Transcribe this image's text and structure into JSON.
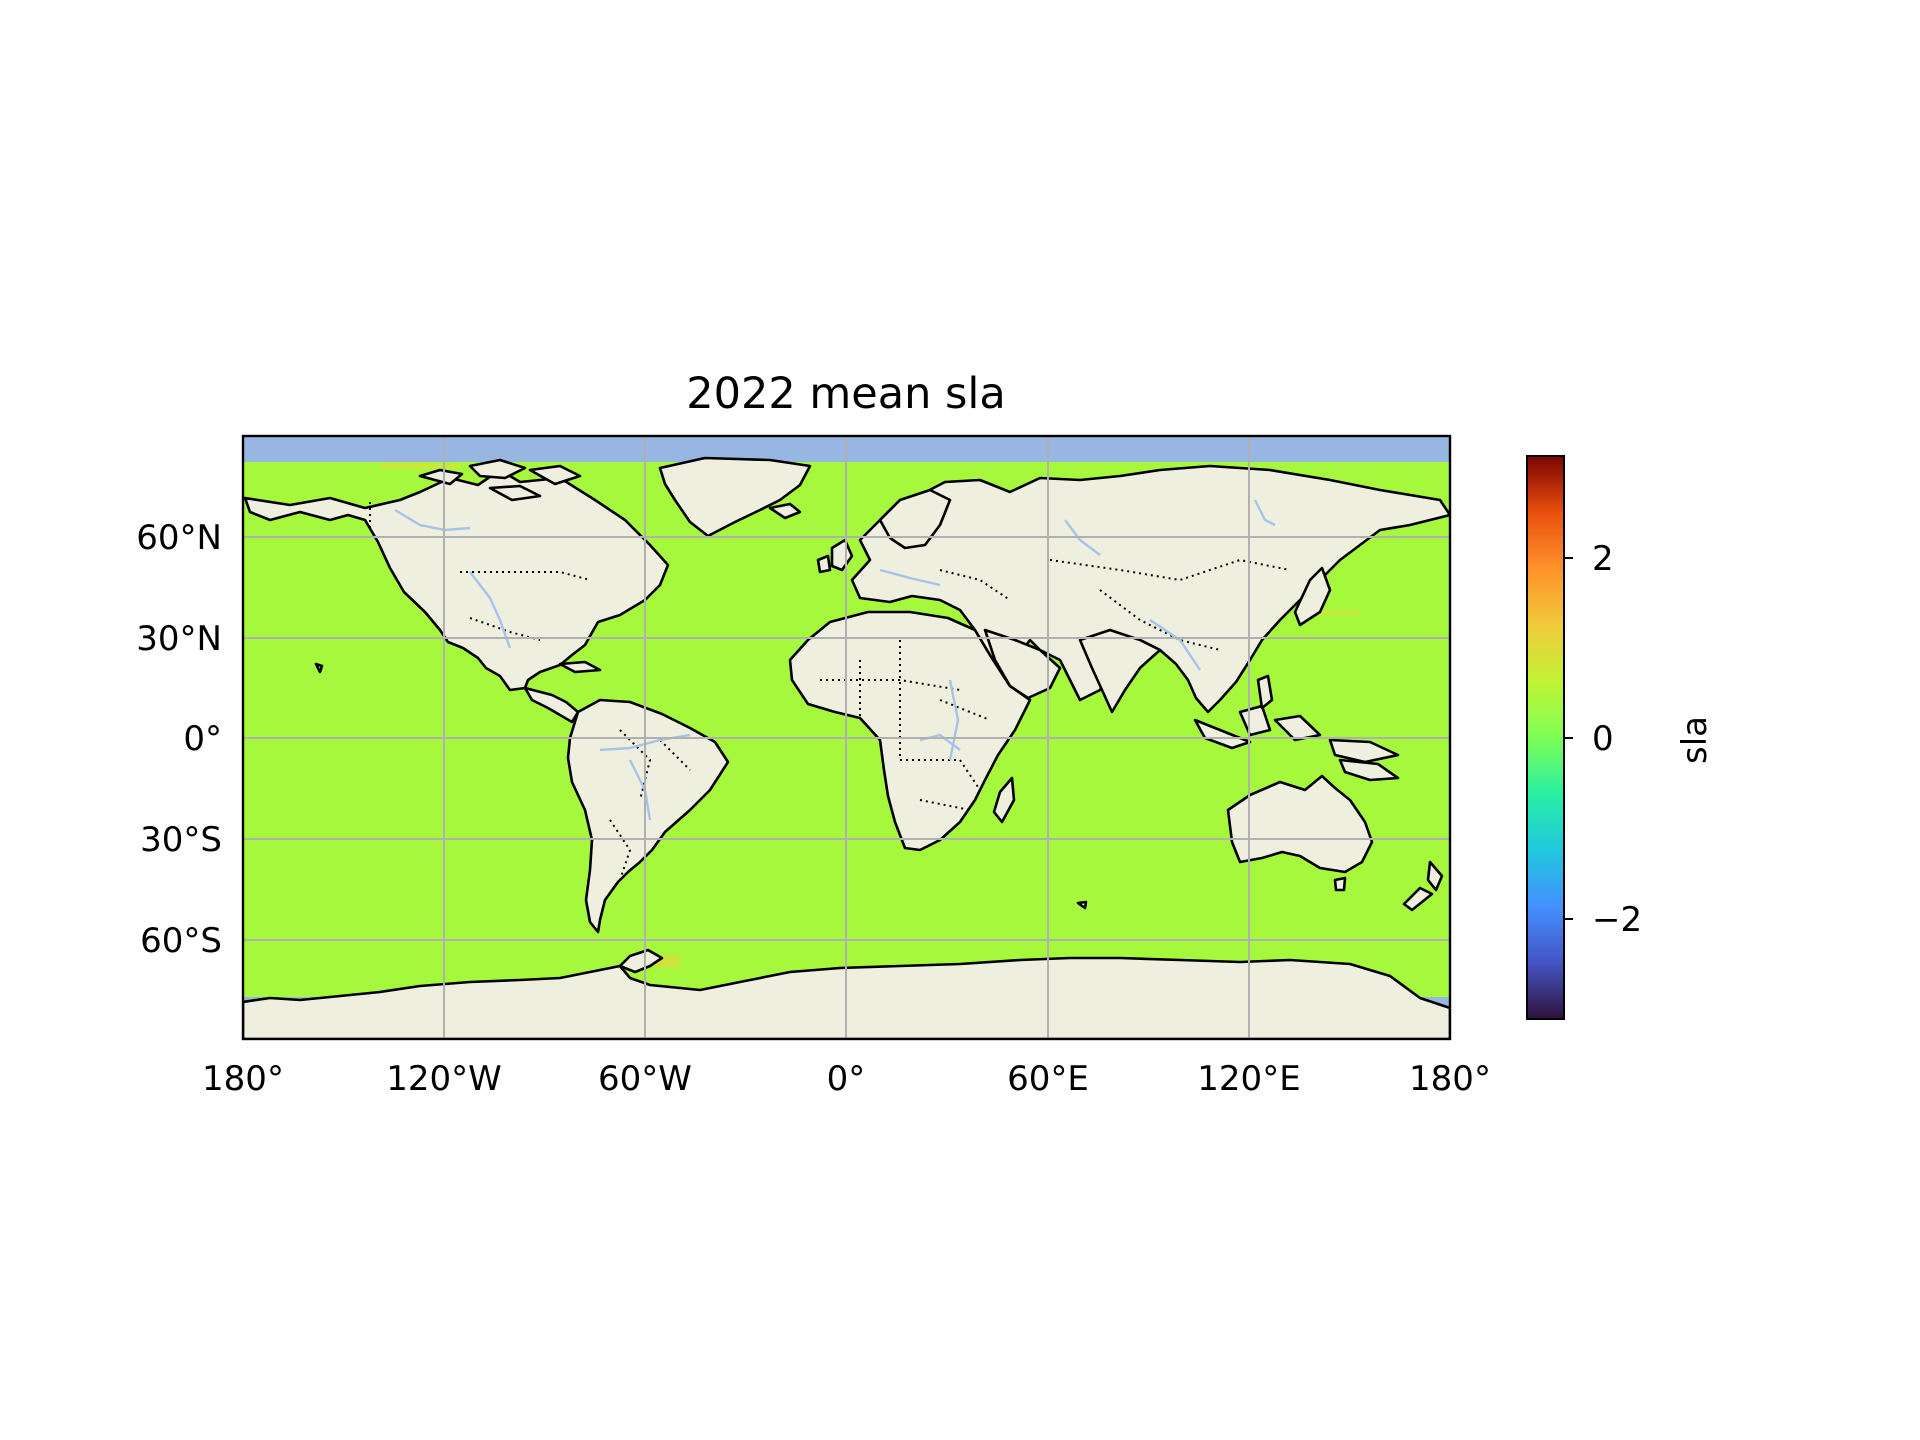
{
  "title": "2022 mean sla",
  "map": {
    "projection": "PlateCarree",
    "lon_range": [
      -180,
      180
    ],
    "lat_range": [
      -90,
      90
    ],
    "land_color": "#efefdf",
    "ocean_mask_color": "#97b6e1",
    "field_color": "#a6f83c",
    "river_color": "#a6c3ea",
    "coastline_color": "#000000",
    "gridline_color": "#b0b0b0",
    "grid": true,
    "x_ticks": [
      {
        "value": -180,
        "label": "180°"
      },
      {
        "value": -120,
        "label": "120°W"
      },
      {
        "value": -60,
        "label": "60°W"
      },
      {
        "value": 0,
        "label": "0°"
      },
      {
        "value": 60,
        "label": "60°E"
      },
      {
        "value": 120,
        "label": "120°E"
      },
      {
        "value": 180,
        "label": "180°"
      }
    ],
    "y_ticks": [
      {
        "value": 60,
        "label": "60°N"
      },
      {
        "value": 30,
        "label": "30°N"
      },
      {
        "value": 0,
        "label": "0°"
      },
      {
        "value": -30,
        "label": "30°S"
      },
      {
        "value": -60,
        "label": "60°S"
      }
    ]
  },
  "colorbar": {
    "label": "sla",
    "colormap": "turbo",
    "range": [
      -3.1,
      3.1
    ],
    "placement": "right",
    "ticks": [
      {
        "value": 2,
        "label": "2"
      },
      {
        "value": 0,
        "label": "0"
      },
      {
        "value": -2,
        "label": "−2"
      }
    ]
  },
  "chart_data": {
    "type": "heatmap",
    "title": "2022 mean sla",
    "xlabel": "",
    "ylabel": "",
    "xlim": [
      -180,
      180
    ],
    "ylim": [
      -90,
      90
    ],
    "colorbar_label": "sla",
    "color_range": [
      -3.1,
      3.1
    ],
    "typical_value": 0.3,
    "grid": true
  }
}
